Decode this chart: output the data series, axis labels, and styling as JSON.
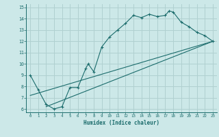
{
  "xlabel": "Humidex (Indice chaleur)",
  "bg_color": "#cce8e8",
  "grid_color": "#b0d0d0",
  "line_color": "#1a6b6b",
  "xlim": [
    -0.5,
    23.5
  ],
  "ylim": [
    5.7,
    15.3
  ],
  "xticks": [
    0,
    1,
    2,
    3,
    4,
    5,
    6,
    7,
    8,
    9,
    10,
    11,
    12,
    13,
    14,
    15,
    16,
    17,
    18,
    19,
    20,
    21,
    22,
    23
  ],
  "yticks": [
    6,
    7,
    8,
    9,
    10,
    11,
    12,
    13,
    14,
    15
  ],
  "line1_x": [
    0,
    1,
    2,
    3,
    4,
    5,
    6,
    7,
    7.3,
    8,
    9,
    10,
    11,
    12,
    13,
    14,
    15,
    16,
    17,
    17.5,
    18,
    19,
    20,
    21,
    22,
    23
  ],
  "line1_y": [
    9.0,
    7.7,
    6.4,
    6.0,
    6.2,
    7.9,
    7.9,
    9.6,
    10.0,
    9.3,
    11.5,
    12.4,
    13.0,
    13.6,
    14.3,
    14.1,
    14.4,
    14.2,
    14.3,
    14.7,
    14.6,
    13.7,
    13.3,
    12.8,
    12.5,
    12.0
  ],
  "line2_x": [
    0,
    23
  ],
  "line2_y": [
    7.2,
    12.0
  ],
  "line3_x": [
    2,
    23
  ],
  "line3_y": [
    6.2,
    12.0
  ]
}
